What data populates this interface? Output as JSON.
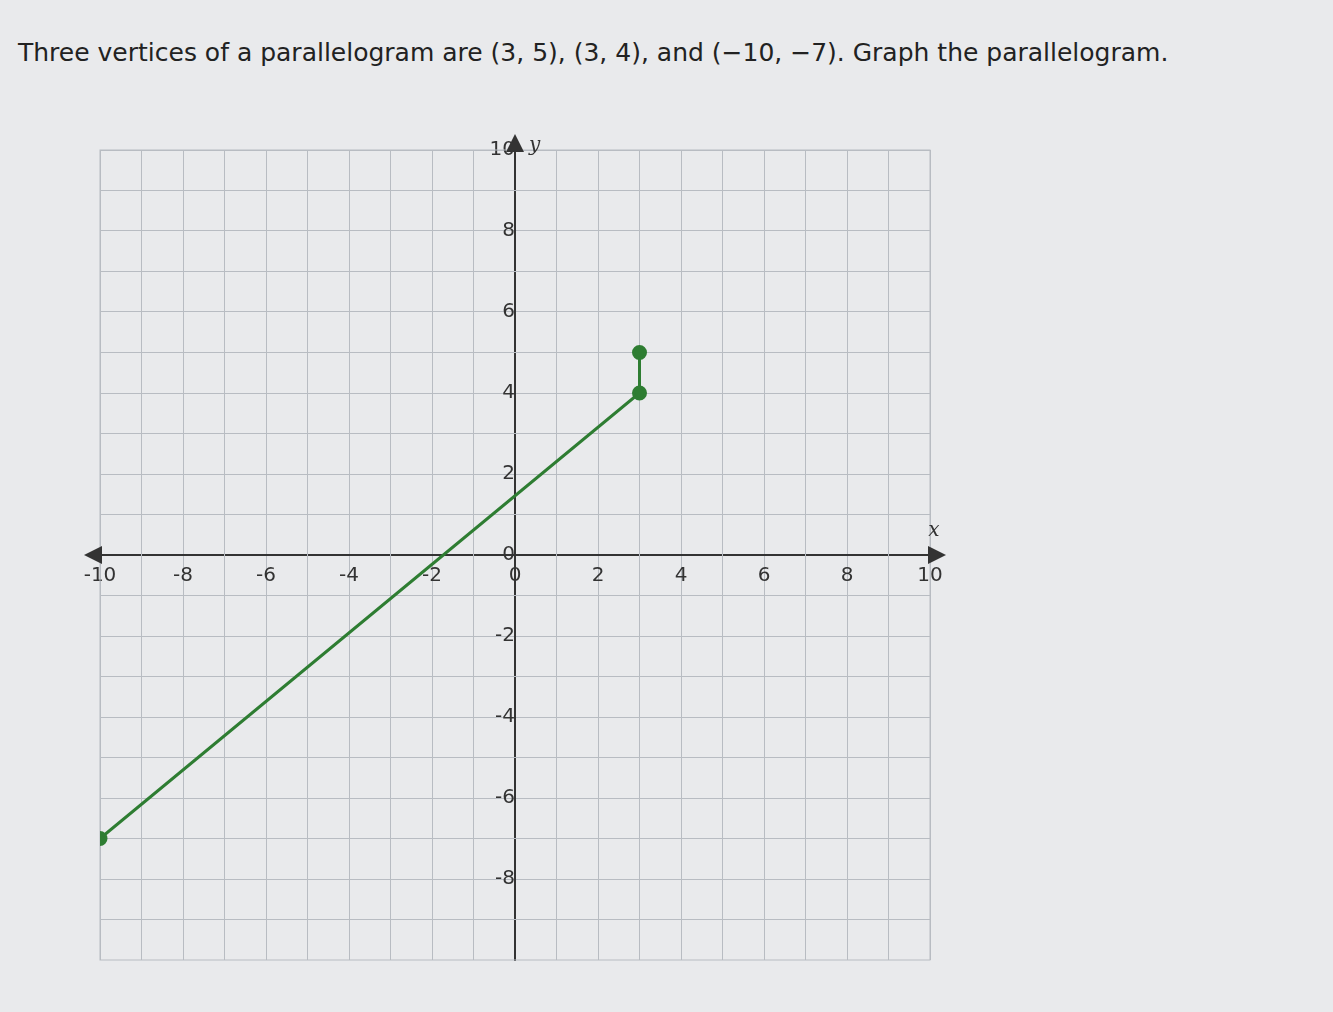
{
  "chart_data": {
    "type": "scatter",
    "title": "Three vertices of a parallelogram are (3, 5), (3, 4), and (−10, −7). Graph the parallelogram.",
    "x_label": "x",
    "y_label": "y",
    "series": [
      {
        "name": "vertices",
        "color": "#2e7d32",
        "x": [
          3,
          3,
          -10
        ],
        "values": [
          5,
          4,
          -7
        ],
        "marker": "circle",
        "line_style": "solid"
      }
    ],
    "xlim": [
      -10,
      10
    ],
    "xticks": [
      -10,
      -8,
      -6,
      -4,
      -2,
      0,
      2,
      4,
      6,
      8,
      10
    ],
    "ylim": [
      -10,
      10
    ],
    "yticks": [
      -8,
      -6,
      -4,
      -2,
      0,
      2,
      4,
      6,
      8,
      10
    ],
    "grid": true
  }
}
